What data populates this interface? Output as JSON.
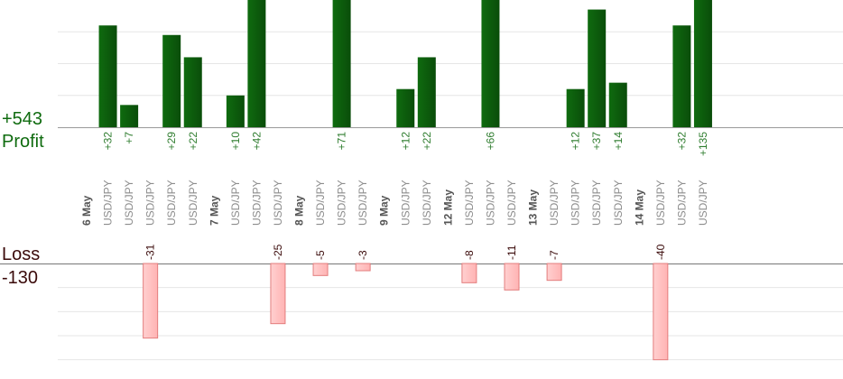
{
  "colors": {
    "profit": "#0f6b0f",
    "profit_dark": "#0a4d0a",
    "profit_text": "#2f7d2f",
    "loss_fill": "#ffb3b3",
    "loss_stroke": "#e37d7d",
    "loss_text": "#3a0a0a",
    "grid": "#e6e6e6",
    "axis": "#9a9a9a",
    "date_text": "#555555",
    "symbol_text": "#8c8c8c"
  },
  "profit": {
    "label": "Profit",
    "total": "+543"
  },
  "loss": {
    "label": "Loss",
    "total": "-130"
  },
  "chart_data": {
    "type": "bar",
    "profit_axis": {
      "ylim": [
        0,
        40
      ]
    },
    "loss_axis": {
      "ylim": [
        -45,
        0
      ]
    },
    "columns": [
      {
        "label": "6 May",
        "kind": "date"
      },
      {
        "label": "USD/JPY",
        "kind": "trade",
        "value": 32,
        "value_label": "+32"
      },
      {
        "label": "USD/JPY",
        "kind": "trade",
        "value": 7,
        "value_label": "+7"
      },
      {
        "label": "USD/JPY",
        "kind": "trade",
        "value": -31,
        "value_label": "-31"
      },
      {
        "label": "USD/JPY",
        "kind": "trade",
        "value": 29,
        "value_label": "+29"
      },
      {
        "label": "USD/JPY",
        "kind": "trade",
        "value": 22,
        "value_label": "+22"
      },
      {
        "label": "7 May",
        "kind": "date"
      },
      {
        "label": "USD/JPY",
        "kind": "trade",
        "value": 10,
        "value_label": "+10"
      },
      {
        "label": "USD/JPY",
        "kind": "trade",
        "value": 42,
        "value_label": "+42"
      },
      {
        "label": "USD/JPY",
        "kind": "trade",
        "value": -25,
        "value_label": "-25"
      },
      {
        "label": "8 May",
        "kind": "date"
      },
      {
        "label": "USD/JPY",
        "kind": "trade",
        "value": -5,
        "value_label": "-5"
      },
      {
        "label": "USD/JPY",
        "kind": "trade",
        "value": 71,
        "value_label": "+71"
      },
      {
        "label": "USD/JPY",
        "kind": "trade",
        "value": -3,
        "value_label": "-3"
      },
      {
        "label": "9 May",
        "kind": "date"
      },
      {
        "label": "USD/JPY",
        "kind": "trade",
        "value": 12,
        "value_label": "+12"
      },
      {
        "label": "USD/JPY",
        "kind": "trade",
        "value": 22,
        "value_label": "+22"
      },
      {
        "label": "12 May",
        "kind": "date"
      },
      {
        "label": "USD/JPY",
        "kind": "trade",
        "value": -8,
        "value_label": "-8"
      },
      {
        "label": "USD/JPY",
        "kind": "trade",
        "value": 66,
        "value_label": "+66"
      },
      {
        "label": "USD/JPY",
        "kind": "trade",
        "value": -11,
        "value_label": "-11"
      },
      {
        "label": "13 May",
        "kind": "date"
      },
      {
        "label": "USD/JPY",
        "kind": "trade",
        "value": -7,
        "value_label": "-7"
      },
      {
        "label": "USD/JPY",
        "kind": "trade",
        "value": 12,
        "value_label": "+12"
      },
      {
        "label": "USD/JPY",
        "kind": "trade",
        "value": 37,
        "value_label": "+37"
      },
      {
        "label": "USD/JPY",
        "kind": "trade",
        "value": 14,
        "value_label": "+14"
      },
      {
        "label": "14 May",
        "kind": "date"
      },
      {
        "label": "USD/JPY",
        "kind": "trade",
        "value": -40,
        "value_label": "-40"
      },
      {
        "label": "USD/JPY",
        "kind": "trade",
        "value": 32,
        "value_label": "+32"
      },
      {
        "label": "USD/JPY",
        "kind": "trade",
        "value": 135,
        "value_label": "+135"
      }
    ]
  }
}
